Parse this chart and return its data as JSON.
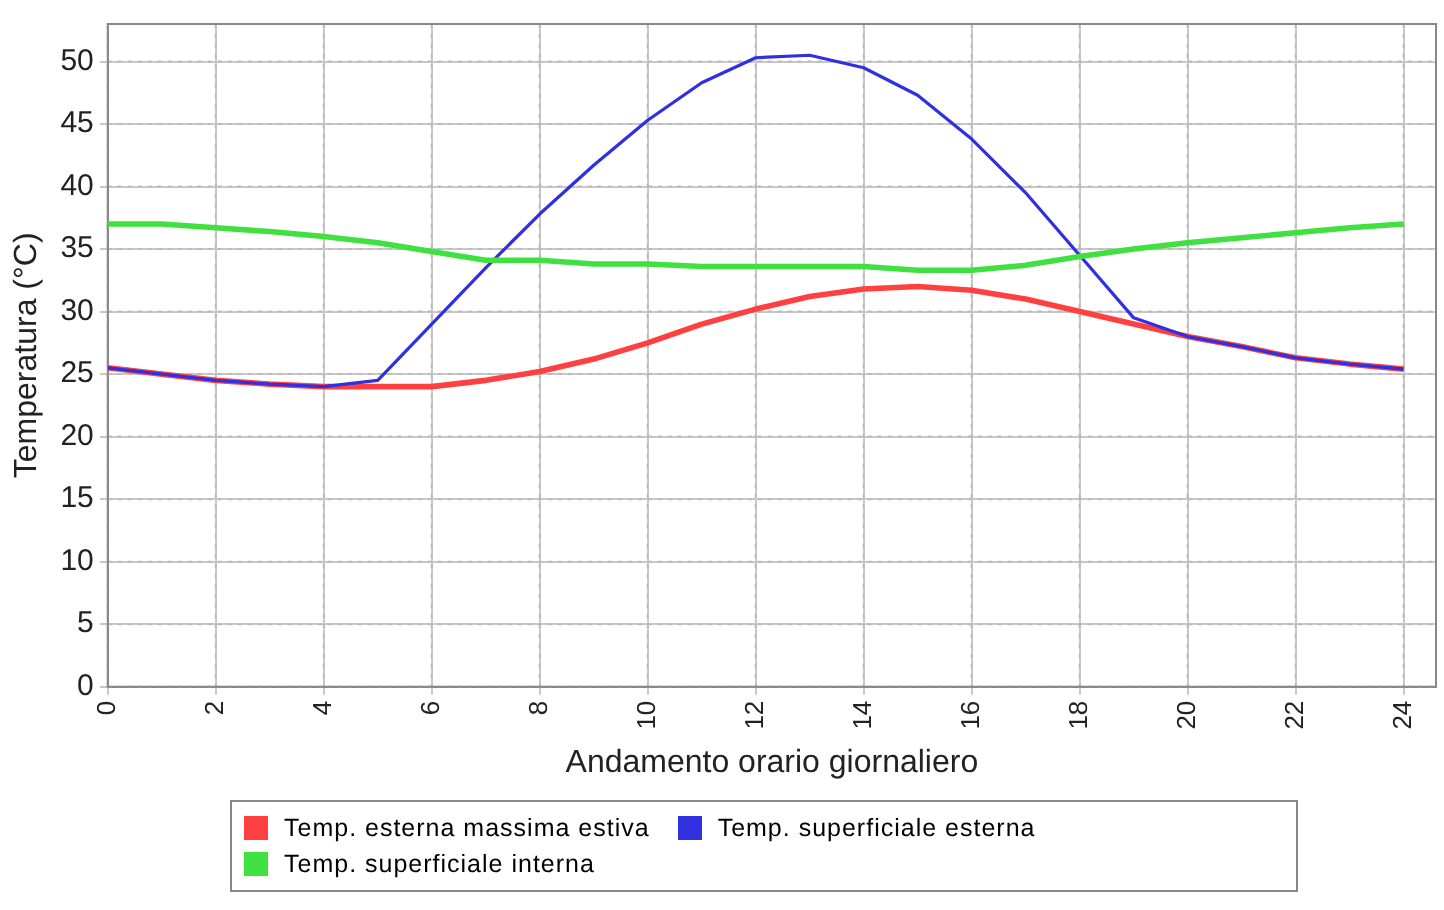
{
  "chart_data": {
    "type": "line",
    "xlabel": "Andamento orario giornaliero",
    "ylabel": "Temperatura (°C)",
    "x": [
      0,
      1,
      2,
      3,
      4,
      5,
      6,
      7,
      8,
      9,
      10,
      11,
      12,
      13,
      14,
      15,
      16,
      17,
      18,
      19,
      20,
      21,
      22,
      23,
      24
    ],
    "series": [
      {
        "name": "Temp. esterna massima estiva",
        "color": "#ff4040",
        "values": [
          25.5,
          25,
          24.5,
          24.2,
          24,
          24,
          24,
          24.5,
          25.2,
          26.2,
          27.5,
          29,
          30.2,
          31.2,
          31.8,
          32,
          31.7,
          31,
          30,
          29,
          28,
          27.2,
          26.3,
          25.8,
          25.4
        ]
      },
      {
        "name": "Temp. superficiale esterna",
        "color": "#3030e0",
        "values": [
          25.5,
          25,
          24.5,
          24.2,
          24,
          24.5,
          29,
          33.5,
          37.8,
          41.7,
          45.3,
          48.3,
          50.3,
          50.5,
          49.5,
          47.3,
          43.8,
          39.5,
          34.5,
          29.5,
          28,
          27.2,
          26.3,
          25.8,
          25.4
        ]
      },
      {
        "name": "Temp. superficiale interna",
        "color": "#40e040",
        "values": [
          37,
          37,
          36.7,
          36.4,
          36,
          35.5,
          34.8,
          34.1,
          34.1,
          33.8,
          33.8,
          33.6,
          33.6,
          33.6,
          33.6,
          33.3,
          33.3,
          33.7,
          34.4,
          35,
          35.5,
          35.9,
          36.3,
          36.7,
          37
        ]
      }
    ],
    "xlim": [
      0,
      24.6
    ],
    "xticks": [
      0,
      2,
      4,
      6,
      8,
      10,
      12,
      14,
      16,
      18,
      20,
      22,
      24
    ],
    "ylim": [
      0,
      53
    ],
    "yticks": [
      0,
      5,
      10,
      15,
      20,
      25,
      30,
      35,
      40,
      45,
      50
    ],
    "grid": true,
    "legend": "bottom",
    "marker": "none",
    "line_style": "solid"
  }
}
